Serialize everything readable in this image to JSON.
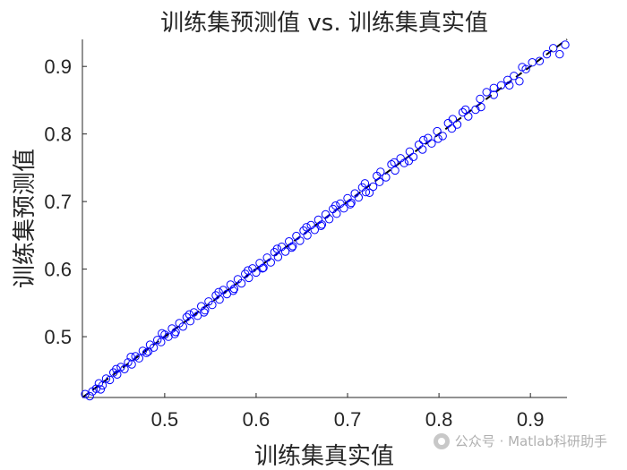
{
  "chart_data": {
    "type": "scatter",
    "title": "训练集预测值 vs. 训练集真实值",
    "xlabel": "训练集真实值",
    "ylabel": "训练集预测值",
    "xlim": [
      0.41,
      0.94
    ],
    "ylim": [
      0.41,
      0.94
    ],
    "xticks": [
      0.5,
      0.6,
      0.7,
      0.8,
      0.9
    ],
    "yticks": [
      0.5,
      0.6,
      0.7,
      0.8,
      0.9
    ],
    "xtick_labels": [
      "0.5",
      "0.6",
      "0.7",
      "0.8",
      "0.9"
    ],
    "ytick_labels": [
      "0.5",
      "0.6",
      "0.7",
      "0.8",
      "0.9"
    ],
    "grid": false,
    "marker_color": "#0000ff",
    "reference_line": {
      "style": "dashed",
      "color": "#000000",
      "from": [
        0.41,
        0.41
      ],
      "to": [
        0.94,
        0.94
      ]
    },
    "series": [
      {
        "points": [
          [
            0.413,
            0.415
          ],
          [
            0.418,
            0.412
          ],
          [
            0.421,
            0.419
          ],
          [
            0.425,
            0.423
          ],
          [
            0.428,
            0.431
          ],
          [
            0.432,
            0.428
          ],
          [
            0.436,
            0.438
          ],
          [
            0.44,
            0.436
          ],
          [
            0.444,
            0.447
          ],
          [
            0.448,
            0.444
          ],
          [
            0.452,
            0.455
          ],
          [
            0.456,
            0.452
          ],
          [
            0.46,
            0.462
          ],
          [
            0.464,
            0.459
          ],
          [
            0.468,
            0.471
          ],
          [
            0.472,
            0.468
          ],
          [
            0.476,
            0.479
          ],
          [
            0.48,
            0.476
          ],
          [
            0.484,
            0.488
          ],
          [
            0.488,
            0.484
          ],
          [
            0.492,
            0.495
          ],
          [
            0.496,
            0.492
          ],
          [
            0.5,
            0.503
          ],
          [
            0.504,
            0.5
          ],
          [
            0.508,
            0.512
          ],
          [
            0.512,
            0.507
          ],
          [
            0.516,
            0.52
          ],
          [
            0.52,
            0.515
          ],
          [
            0.524,
            0.529
          ],
          [
            0.528,
            0.523
          ],
          [
            0.532,
            0.536
          ],
          [
            0.536,
            0.531
          ],
          [
            0.54,
            0.545
          ],
          [
            0.544,
            0.539
          ],
          [
            0.548,
            0.552
          ],
          [
            0.552,
            0.547
          ],
          [
            0.556,
            0.561
          ],
          [
            0.56,
            0.555
          ],
          [
            0.564,
            0.569
          ],
          [
            0.568,
            0.563
          ],
          [
            0.572,
            0.577
          ],
          [
            0.576,
            0.571
          ],
          [
            0.58,
            0.585
          ],
          [
            0.584,
            0.579
          ],
          [
            0.588,
            0.593
          ],
          [
            0.592,
            0.587
          ],
          [
            0.596,
            0.601
          ],
          [
            0.6,
            0.595
          ],
          [
            0.604,
            0.609
          ],
          [
            0.608,
            0.602
          ],
          [
            0.612,
            0.617
          ],
          [
            0.616,
            0.61
          ],
          [
            0.62,
            0.625
          ],
          [
            0.624,
            0.618
          ],
          [
            0.628,
            0.633
          ],
          [
            0.632,
            0.626
          ],
          [
            0.636,
            0.641
          ],
          [
            0.64,
            0.634
          ],
          [
            0.644,
            0.649
          ],
          [
            0.648,
            0.642
          ],
          [
            0.652,
            0.657
          ],
          [
            0.656,
            0.65
          ],
          [
            0.66,
            0.665
          ],
          [
            0.664,
            0.658
          ],
          [
            0.668,
            0.673
          ],
          [
            0.672,
            0.666
          ],
          [
            0.676,
            0.681
          ],
          [
            0.68,
            0.674
          ],
          [
            0.684,
            0.689
          ],
          [
            0.688,
            0.682
          ],
          [
            0.692,
            0.697
          ],
          [
            0.696,
            0.69
          ],
          [
            0.7,
            0.705
          ],
          [
            0.704,
            0.698
          ],
          [
            0.708,
            0.712
          ],
          [
            0.712,
            0.706
          ],
          [
            0.716,
            0.721
          ],
          [
            0.72,
            0.714
          ],
          [
            0.724,
            0.713
          ],
          [
            0.728,
            0.722
          ],
          [
            0.732,
            0.738
          ],
          [
            0.736,
            0.744
          ],
          [
            0.742,
            0.736
          ],
          [
            0.748,
            0.755
          ],
          [
            0.752,
            0.746
          ],
          [
            0.758,
            0.764
          ],
          [
            0.762,
            0.757
          ],
          [
            0.768,
            0.774
          ],
          [
            0.772,
            0.766
          ],
          [
            0.778,
            0.784
          ],
          [
            0.782,
            0.777
          ],
          [
            0.788,
            0.794
          ],
          [
            0.792,
            0.786
          ],
          [
            0.798,
            0.804
          ],
          [
            0.804,
            0.797
          ],
          [
            0.81,
            0.816
          ],
          [
            0.815,
            0.822
          ],
          [
            0.82,
            0.814
          ],
          [
            0.826,
            0.832
          ],
          [
            0.832,
            0.826
          ],
          [
            0.84,
            0.836
          ],
          [
            0.845,
            0.852
          ],
          [
            0.852,
            0.862
          ],
          [
            0.86,
            0.858
          ],
          [
            0.868,
            0.872
          ],
          [
            0.875,
            0.88
          ],
          [
            0.882,
            0.886
          ],
          [
            0.888,
            0.878
          ],
          [
            0.895,
            0.896
          ],
          [
            0.902,
            0.906
          ],
          [
            0.91,
            0.908
          ],
          [
            0.918,
            0.918
          ],
          [
            0.925,
            0.927
          ],
          [
            0.932,
            0.918
          ],
          [
            0.938,
            0.932
          ],
          [
            0.43,
            0.422
          ],
          [
            0.447,
            0.452
          ],
          [
            0.463,
            0.47
          ],
          [
            0.482,
            0.478
          ],
          [
            0.497,
            0.505
          ],
          [
            0.511,
            0.504
          ],
          [
            0.527,
            0.533
          ],
          [
            0.543,
            0.536
          ],
          [
            0.559,
            0.566
          ],
          [
            0.575,
            0.568
          ],
          [
            0.591,
            0.598
          ],
          [
            0.607,
            0.601
          ],
          [
            0.623,
            0.63
          ],
          [
            0.639,
            0.632
          ],
          [
            0.655,
            0.662
          ],
          [
            0.671,
            0.664
          ],
          [
            0.687,
            0.694
          ],
          [
            0.703,
            0.696
          ],
          [
            0.719,
            0.727
          ],
          [
            0.735,
            0.729
          ],
          [
            0.751,
            0.758
          ],
          [
            0.767,
            0.76
          ],
          [
            0.783,
            0.791
          ],
          [
            0.799,
            0.793
          ],
          [
            0.814,
            0.808
          ],
          [
            0.829,
            0.836
          ],
          [
            0.846,
            0.84
          ],
          [
            0.86,
            0.868
          ],
          [
            0.877,
            0.872
          ],
          [
            0.891,
            0.899
          ]
        ]
      }
    ]
  },
  "watermark": {
    "text": "公众号 · Matlab科研助手"
  }
}
